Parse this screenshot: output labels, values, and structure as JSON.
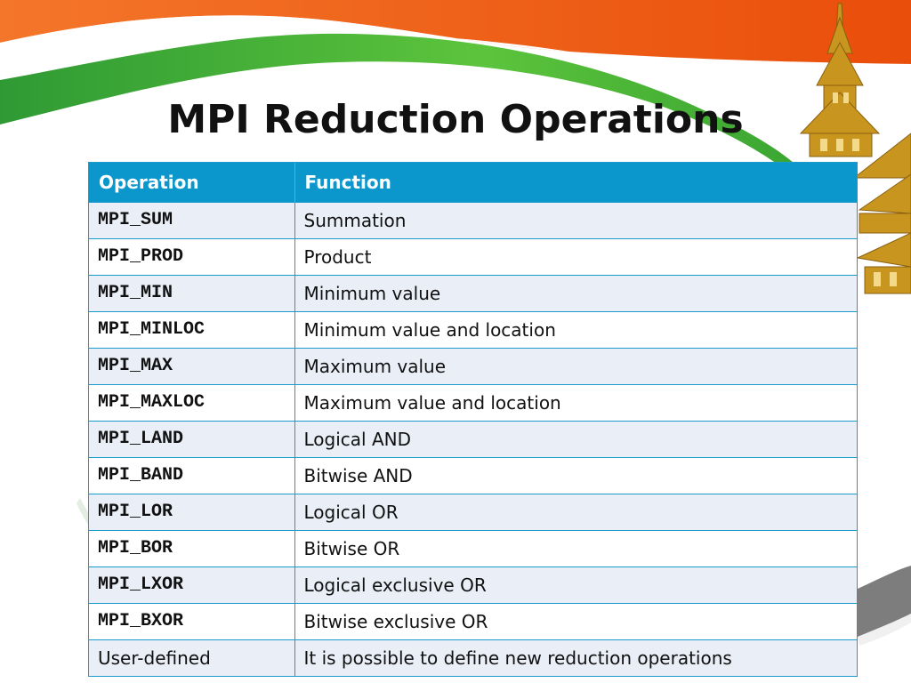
{
  "slide": {
    "title": "MPI Reduction Operations"
  },
  "table": {
    "headers": [
      "Operation",
      "Function"
    ],
    "rows": [
      {
        "operation": "MPI_SUM",
        "function": "Summation",
        "monospace": true
      },
      {
        "operation": "MPI_PROD",
        "function": "Product",
        "monospace": true
      },
      {
        "operation": "MPI_MIN",
        "function": "Minimum value",
        "monospace": true
      },
      {
        "operation": "MPI_MINLOC",
        "function": "Minimum value and location",
        "monospace": true
      },
      {
        "operation": "MPI_MAX",
        "function": "Maximum value",
        "monospace": true
      },
      {
        "operation": "MPI_MAXLOC",
        "function": "Maximum value and location",
        "monospace": true
      },
      {
        "operation": "MPI_LAND",
        "function": "Logical AND",
        "monospace": true
      },
      {
        "operation": "MPI_BAND",
        "function": "Bitwise AND",
        "monospace": true
      },
      {
        "operation": "MPI_LOR",
        "function": "Logical OR",
        "monospace": true
      },
      {
        "operation": "MPI_BOR",
        "function": "Bitwise OR",
        "monospace": true
      },
      {
        "operation": "MPI_LXOR",
        "function": "Logical exclusive OR",
        "monospace": true
      },
      {
        "operation": "MPI_BXOR",
        "function": "Bitwise exclusive OR",
        "monospace": true
      },
      {
        "operation": "User-defined",
        "function": "It is possible to define new reduction operations",
        "monospace": false
      }
    ]
  },
  "theme": {
    "header_bg": "#0b97cc",
    "border": "#1b9bcc",
    "row_alt_bg": "#e9eef7",
    "band_orange": "#ef5a0f",
    "band_green": "#3cae3c",
    "band_gray": "#7d7d7d",
    "temple_gold": "#c8961e"
  },
  "decorations": {
    "top_band": "tricolor-wave-band",
    "corner_art": "temple-roof-illustration-icon",
    "bottom_band": "gray-swoosh-band"
  }
}
